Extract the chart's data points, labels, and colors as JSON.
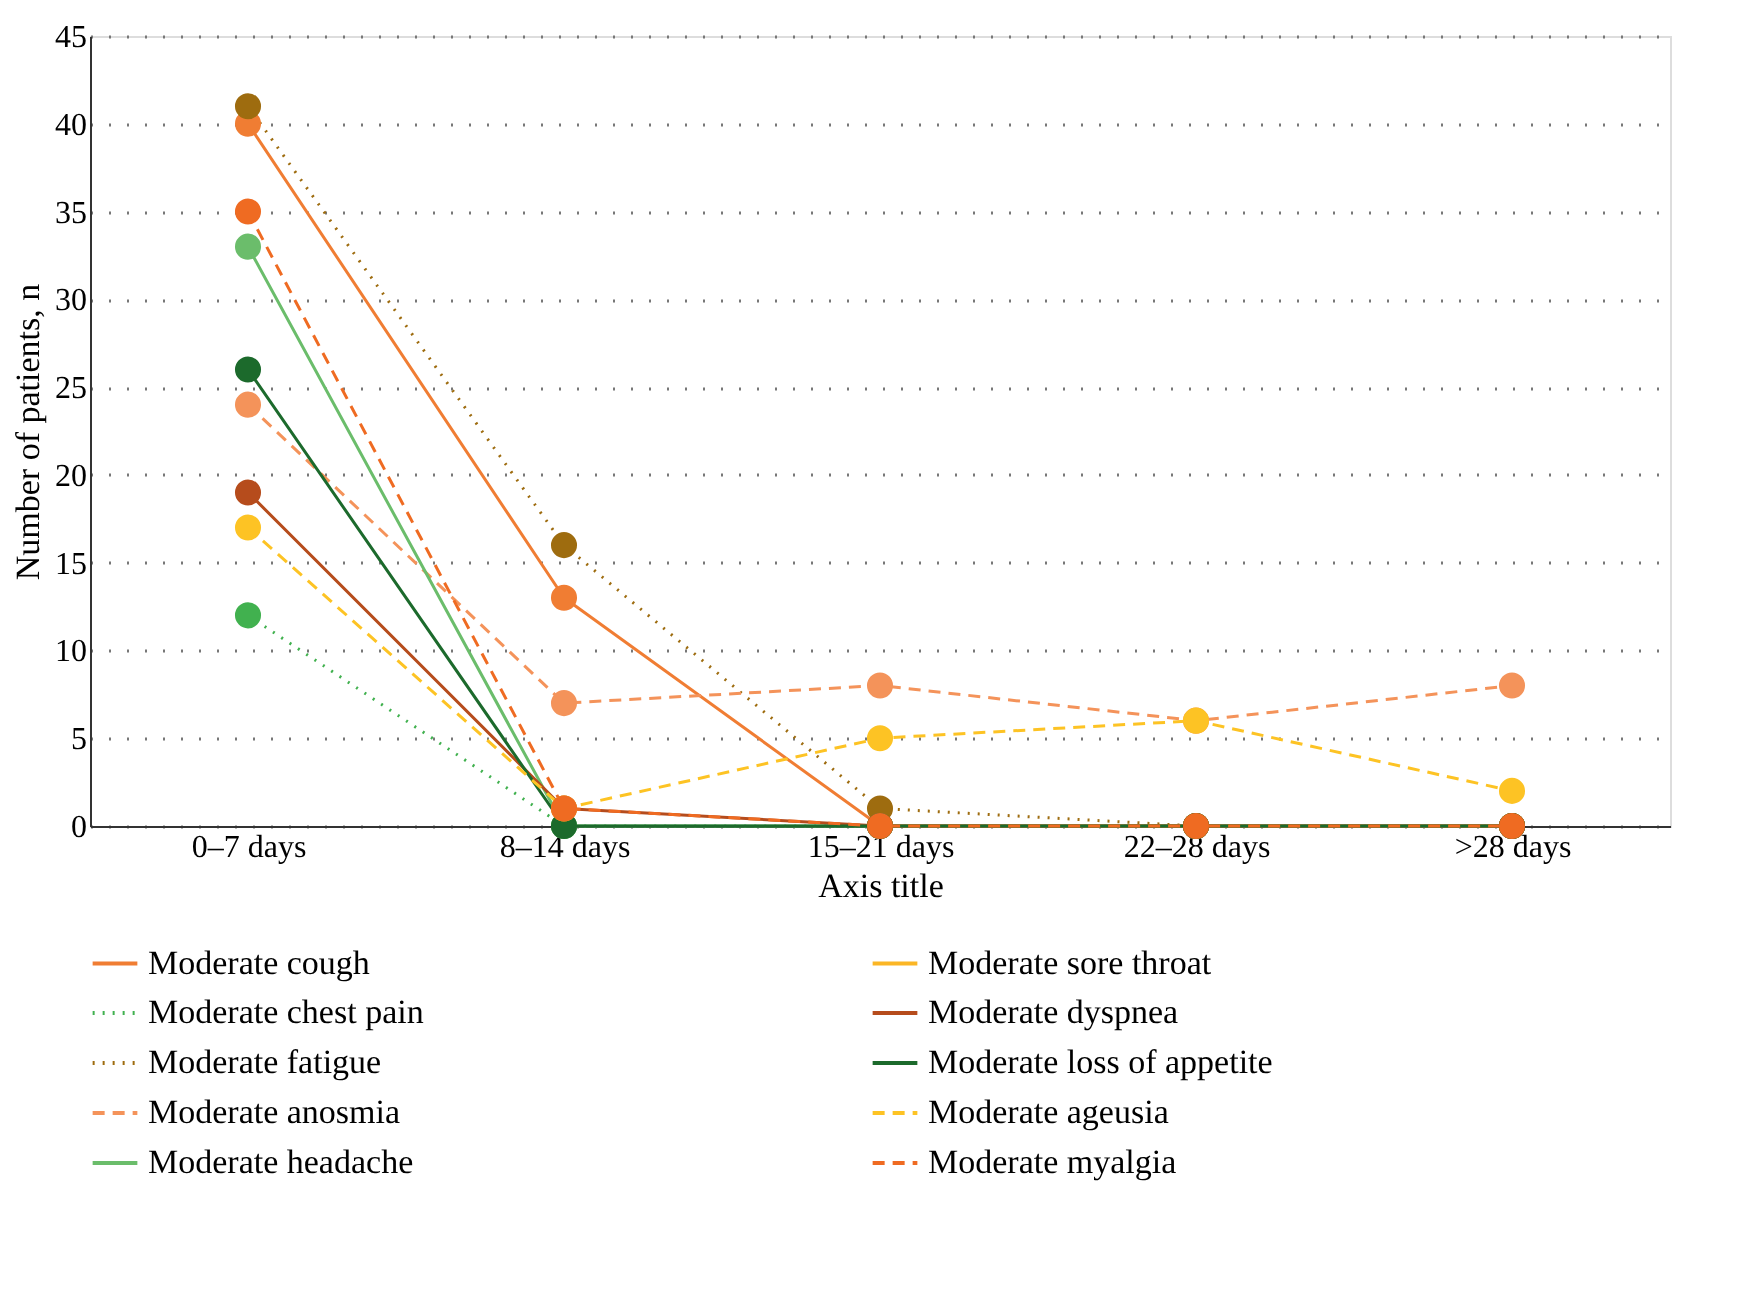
{
  "chart_data": {
    "type": "line",
    "xlabel": "Axis title",
    "ylabel": "Number of patients, n",
    "categories": [
      "0–7 days",
      "8–14 days",
      "15–21 days",
      "22–28 days",
      ">28 days"
    ],
    "ylim": [
      0,
      45
    ],
    "yticks": [
      0,
      5,
      10,
      15,
      20,
      25,
      30,
      35,
      40,
      45
    ],
    "grid": "y",
    "legend": "bottom",
    "marker": "circle",
    "series": [
      {
        "name": "Moderate cough",
        "color": "#f07d33",
        "line_style": "solid",
        "values": [
          40,
          13,
          0,
          0,
          0
        ]
      },
      {
        "name": "Moderate chest pain",
        "color": "#41b14f",
        "line_style": "dotted",
        "values": [
          12,
          0,
          0,
          0,
          0
        ]
      },
      {
        "name": "Moderate fatigue",
        "color": "#9e6c0f",
        "line_style": "dotted",
        "values": [
          41,
          16,
          1,
          0,
          0
        ]
      },
      {
        "name": "Moderate anosmia",
        "color": "#f4935a",
        "line_style": "dashed",
        "values": [
          24,
          7,
          8,
          6,
          8
        ]
      },
      {
        "name": "Moderate headache",
        "color": "#6bbd6b",
        "line_style": "solid",
        "values": [
          33,
          0,
          0,
          0,
          0
        ]
      },
      {
        "name": "Moderate sore throat",
        "color": "#fbb625",
        "line_style": "solid",
        "values": [
          null,
          null,
          null,
          null,
          null
        ]
      },
      {
        "name": "Moderate dyspnea",
        "color": "#b64c1c",
        "line_style": "solid",
        "values": [
          19,
          1,
          0,
          0,
          0
        ]
      },
      {
        "name": "Moderate loss of appetite",
        "color": "#1c6a2c",
        "line_style": "solid",
        "values": [
          26,
          0,
          0,
          0,
          0
        ]
      },
      {
        "name": "Moderate ageusia",
        "color": "#fdc324",
        "line_style": "dashed",
        "values": [
          17,
          1,
          5,
          6,
          2
        ]
      },
      {
        "name": "Moderate myalgia",
        "color": "#ef6b22",
        "line_style": "dashed",
        "values": [
          35,
          1,
          0,
          0,
          0
        ]
      }
    ]
  }
}
